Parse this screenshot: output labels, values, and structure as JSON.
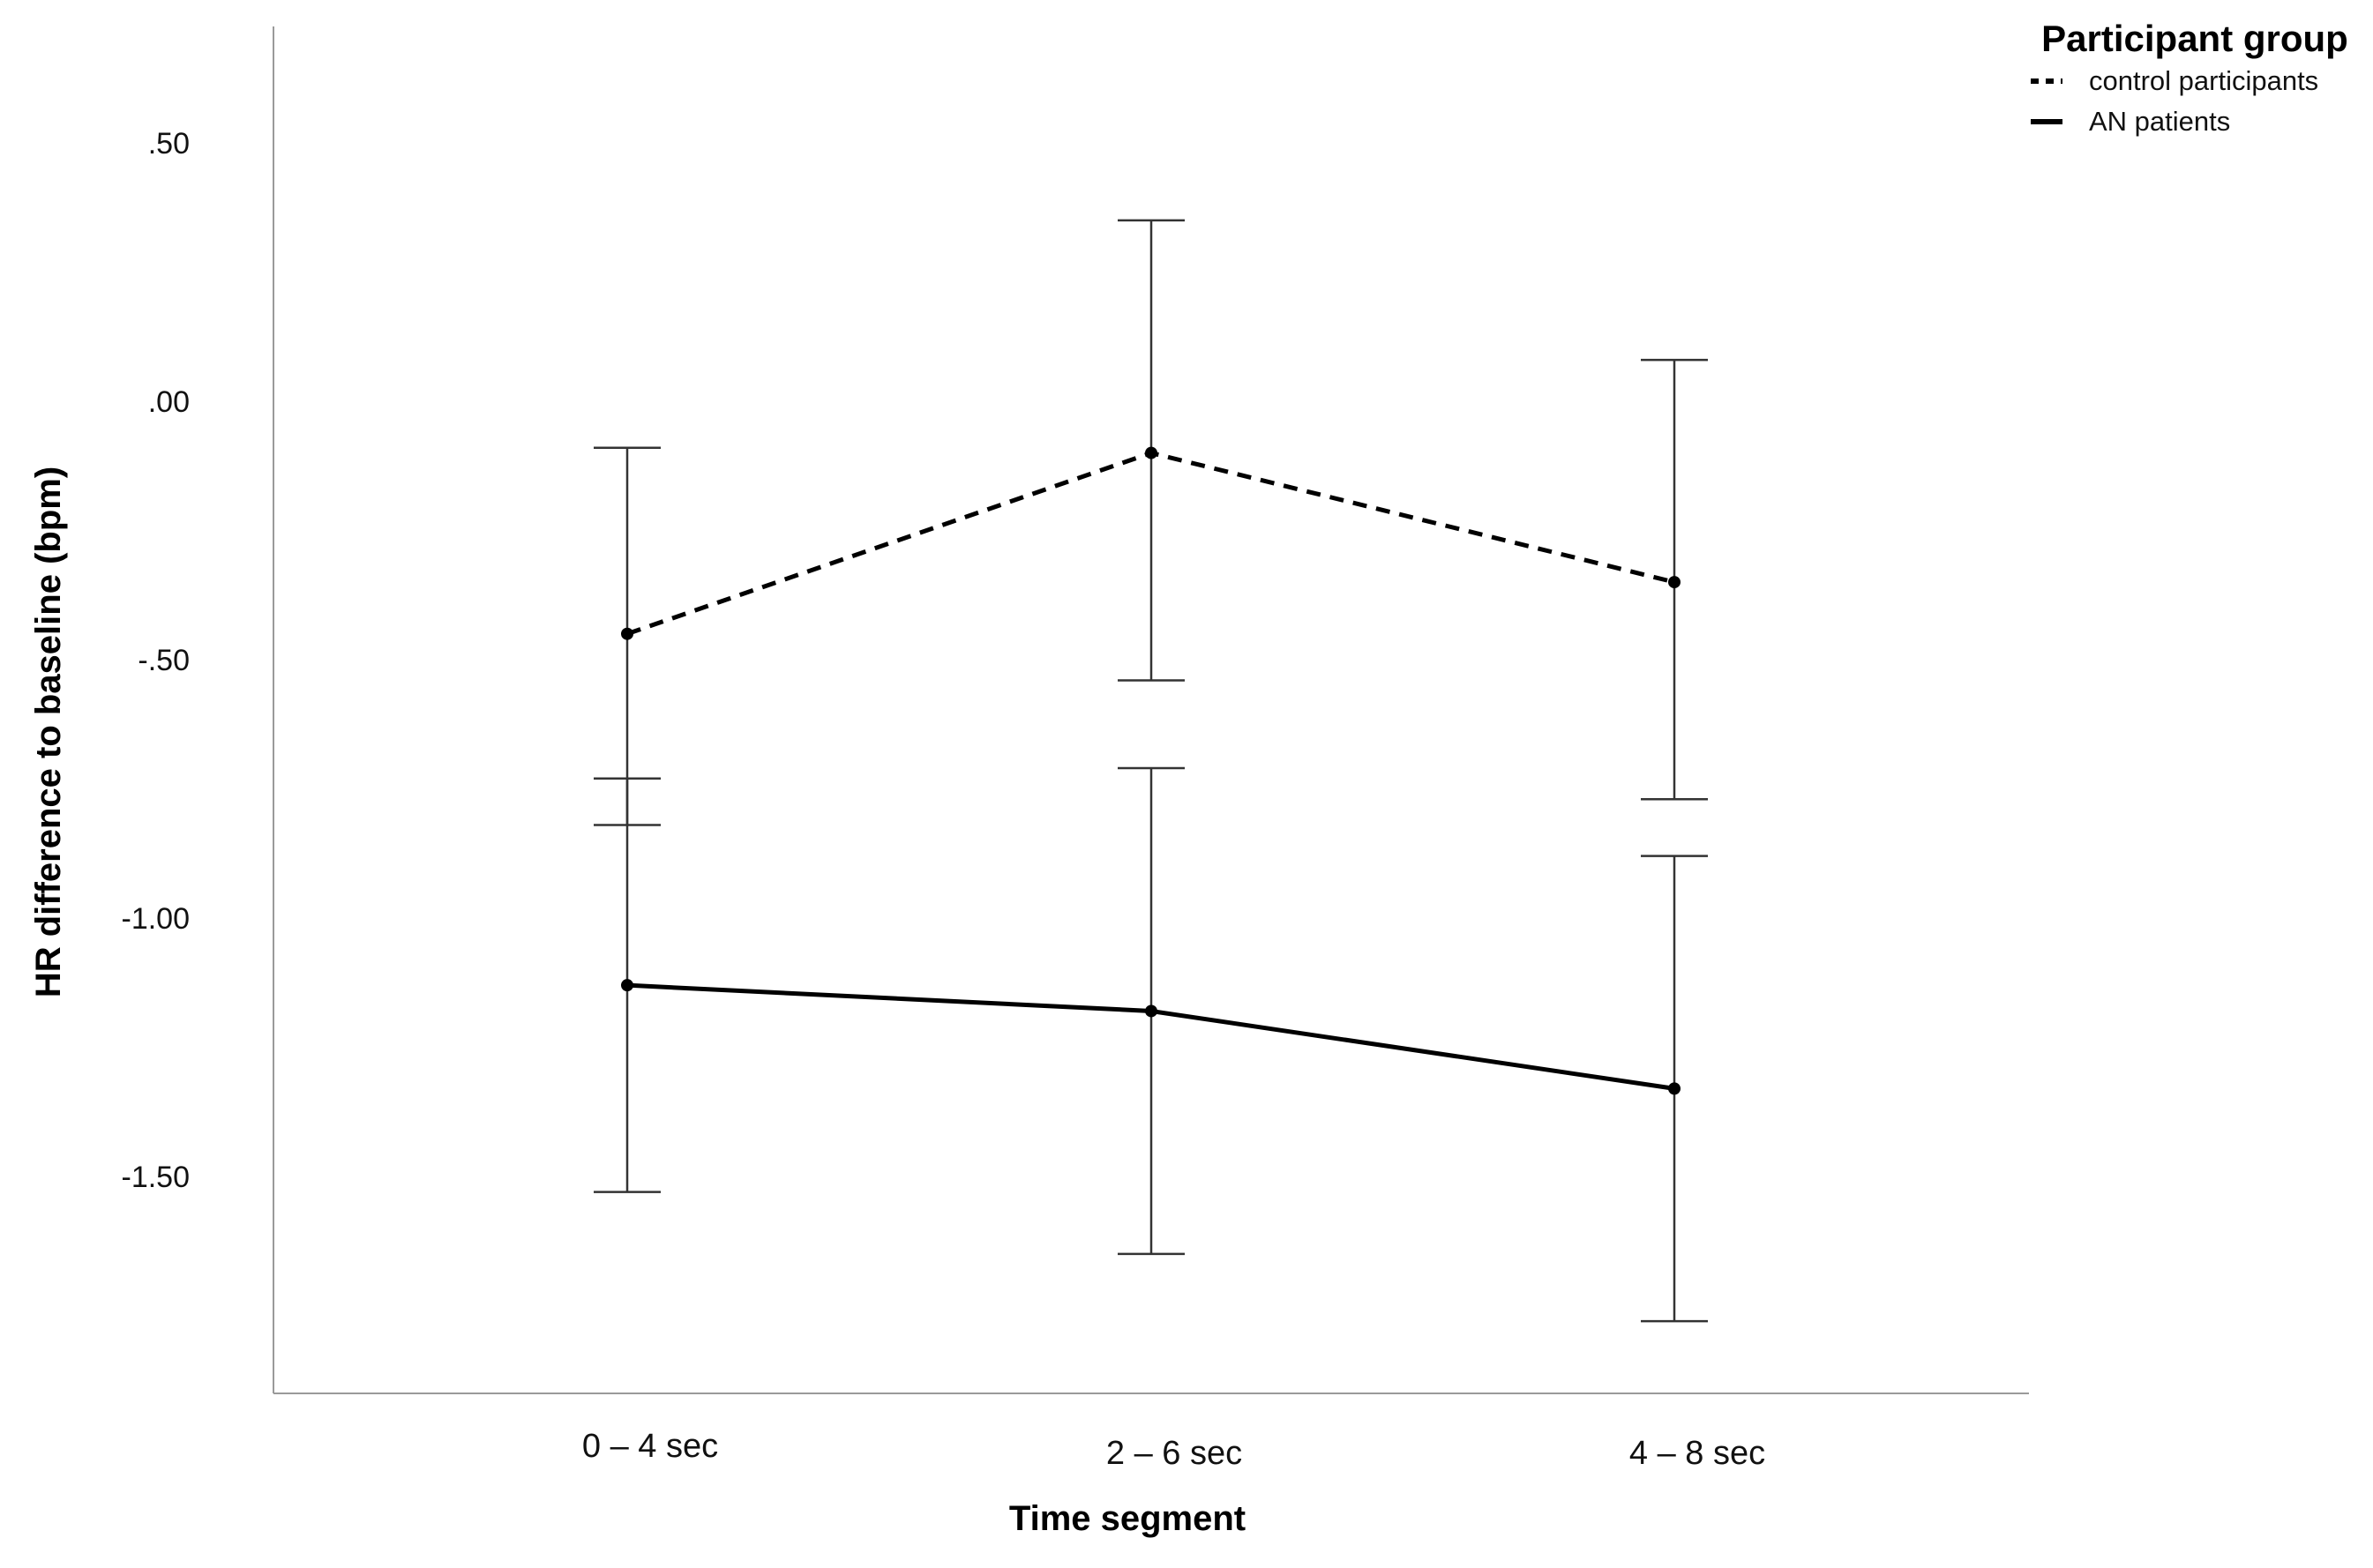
{
  "chart_data": {
    "type": "line",
    "xlabel": "Time segment",
    "ylabel": "HR difference to baseline (bpm)",
    "categories": [
      "0 – 4 sec",
      "2 – 6 sec",
      "4 – 8 sec"
    ],
    "y_ticks": [
      ".50",
      ".00",
      "-.50",
      "-1.00",
      "-1.50"
    ],
    "y_tick_values": [
      0.5,
      0.0,
      -0.5,
      -1.0,
      -1.5
    ],
    "ylim": [
      -1.85,
      0.7
    ],
    "grid": false,
    "legend": {
      "title": "Participant group",
      "position": "top-right"
    },
    "series": [
      {
        "name": "control participants",
        "line_style": "dashed",
        "color": "#000000",
        "values": [
          -0.45,
          -0.1,
          -0.35
        ],
        "error_low": [
          -0.82,
          -0.54,
          -0.77
        ],
        "error_high": [
          -0.09,
          0.35,
          0.08
        ]
      },
      {
        "name": "AN patients",
        "line_style": "solid",
        "color": "#000000",
        "values": [
          -1.13,
          -1.18,
          -1.33
        ],
        "error_low": [
          -1.53,
          -1.65,
          -1.78
        ],
        "error_high": [
          -0.73,
          -0.71,
          -0.88
        ]
      }
    ]
  }
}
